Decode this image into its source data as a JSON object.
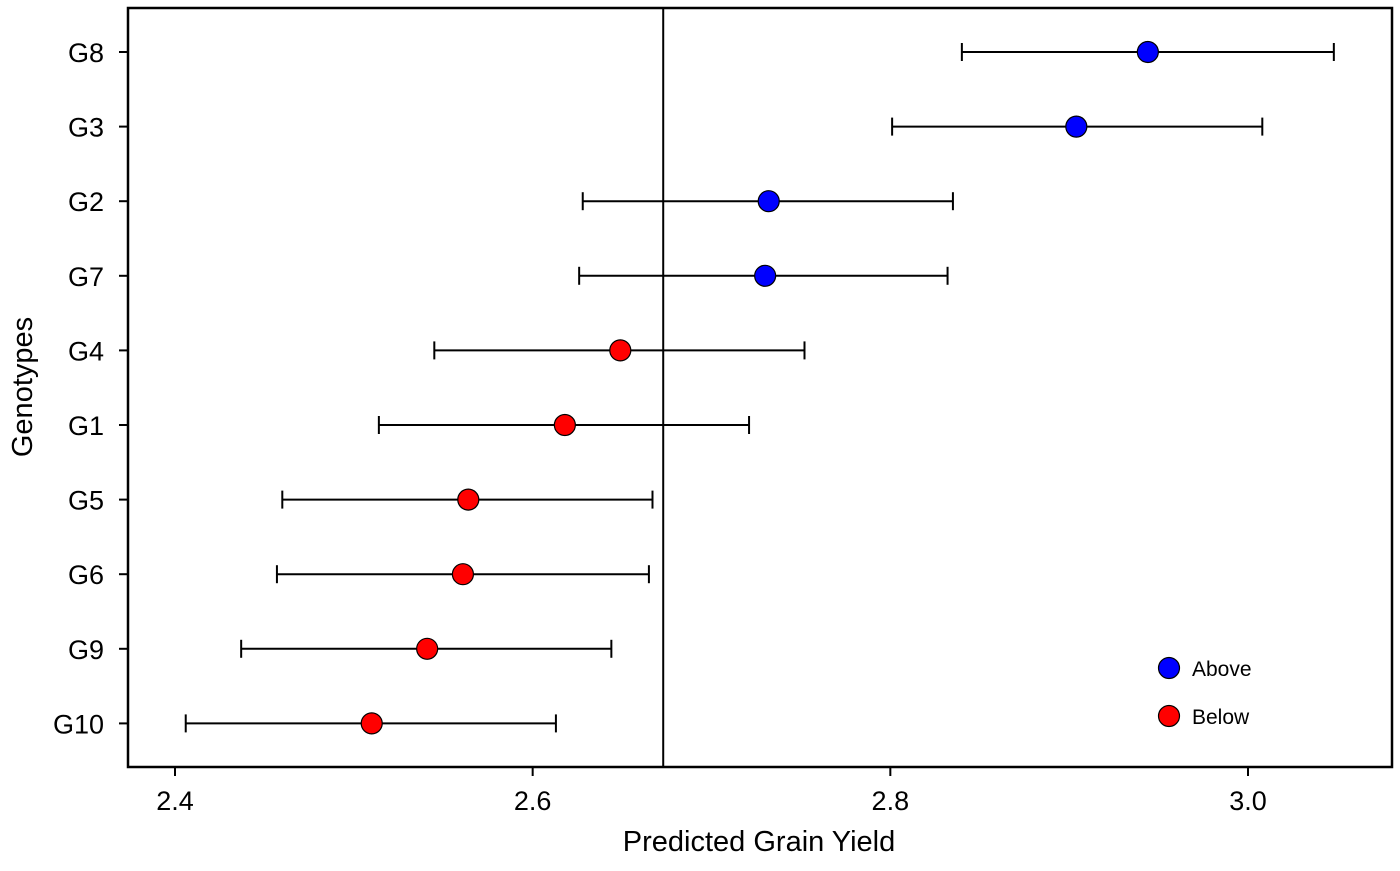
{
  "chart_data": {
    "type": "scatter",
    "title": "",
    "xlabel": "Predicted Grain Yield",
    "ylabel": "Genotypes",
    "xlim": [
      2.38,
      3.08
    ],
    "x_ticks": [
      2.4,
      2.6,
      2.8,
      3.0
    ],
    "x_tick_labels": [
      "2.4",
      "2.6",
      "2.8",
      "3.0"
    ],
    "reference_line_x": 2.673,
    "grid": false,
    "legend_position": "bottom-right",
    "categories": [
      "G8",
      "G3",
      "G2",
      "G7",
      "G4",
      "G1",
      "G5",
      "G6",
      "G9",
      "G10"
    ],
    "series": [
      {
        "name": "Above",
        "color": "#0000ff",
        "points": [
          {
            "genotype": "G8",
            "value": 2.944,
            "lower": 2.84,
            "upper": 3.048
          },
          {
            "genotype": "G3",
            "value": 2.904,
            "lower": 2.801,
            "upper": 3.008
          },
          {
            "genotype": "G2",
            "value": 2.732,
            "lower": 2.628,
            "upper": 2.835
          },
          {
            "genotype": "G7",
            "value": 2.73,
            "lower": 2.626,
            "upper": 2.832
          }
        ]
      },
      {
        "name": "Below",
        "color": "#ff0000",
        "points": [
          {
            "genotype": "G4",
            "value": 2.649,
            "lower": 2.545,
            "upper": 2.752
          },
          {
            "genotype": "G1",
            "value": 2.618,
            "lower": 2.514,
            "upper": 2.721
          },
          {
            "genotype": "G5",
            "value": 2.564,
            "lower": 2.46,
            "upper": 2.667
          },
          {
            "genotype": "G6",
            "value": 2.561,
            "lower": 2.457,
            "upper": 2.665
          },
          {
            "genotype": "G9",
            "value": 2.541,
            "lower": 2.437,
            "upper": 2.644
          },
          {
            "genotype": "G10",
            "value": 2.51,
            "lower": 2.406,
            "upper": 2.613
          }
        ]
      }
    ]
  }
}
